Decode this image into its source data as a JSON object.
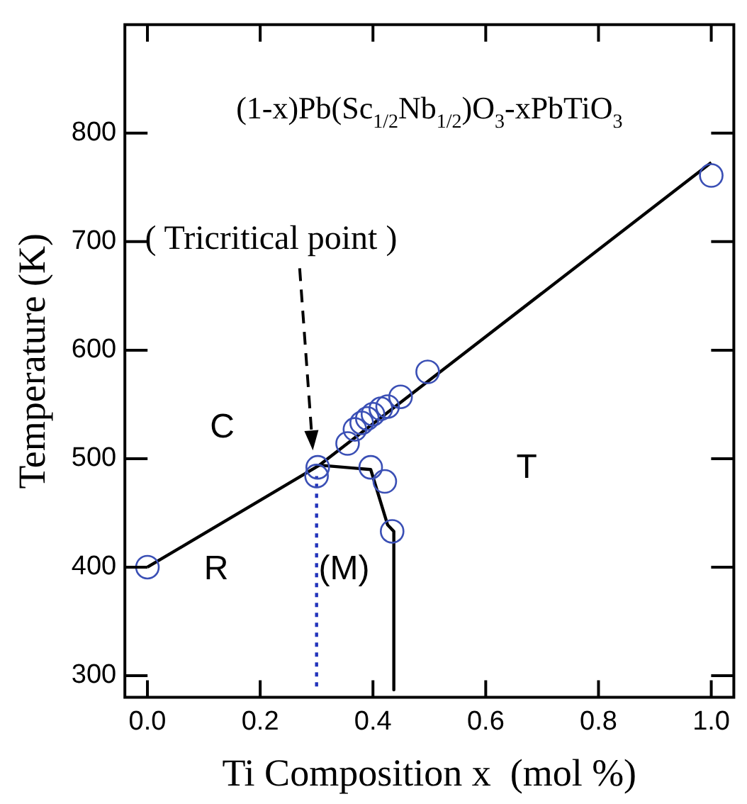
{
  "chart_data": {
    "type": "scatter",
    "title": "(1-x)Pb(Sc$_{1/2}$Nb$_{1/2}$)O$_{3}$-xPbTiO$_{3}$",
    "xlabel": "Ti Composition x  (mol %)",
    "ylabel": "Temperature (K)",
    "xlim": [
      -0.04,
      1.04
    ],
    "xticks": [
      {
        "value": 0,
        "label": "0.0"
      },
      {
        "value": 0.2,
        "label": "0.2"
      },
      {
        "value": 0.4,
        "label": "0.4"
      },
      {
        "value": 0.6,
        "label": "0.6"
      },
      {
        "value": 0.8,
        "label": "0.8"
      },
      {
        "value": 1,
        "label": "1.0"
      }
    ],
    "ylim": [
      280,
      900
    ],
    "yticks": [
      300,
      400,
      500,
      600,
      700,
      800
    ],
    "grid": false,
    "legend": false,
    "series": [
      {
        "type": "scatter",
        "color": "#3a4fb5",
        "marker": "circle",
        "x": [
          0,
          0.3,
          0.302,
          0.355,
          0.368,
          0.38,
          0.39,
          0.4,
          0.414,
          0.426,
          0.449,
          0.497,
          1.0,
          0.396,
          0.421,
          0.434
        ],
        "values": [
          400,
          484,
          492,
          514,
          527,
          533,
          537,
          541,
          546,
          548,
          557,
          580,
          761,
          492,
          479,
          433
        ]
      },
      {
        "type": "line",
        "color": "#000000",
        "marker": "none",
        "line_style": "solid",
        "x": [
          0,
          0.305,
          1.0
        ],
        "values": [
          400,
          494,
          773
        ]
      },
      {
        "type": "line",
        "color": "#000000",
        "marker": "none",
        "line_style": "solid",
        "x": [
          0.305,
          0.396,
          0.426,
          0.437,
          0.437
        ],
        "values": [
          494,
          490,
          439,
          433,
          287
        ]
      },
      {
        "type": "line",
        "color": "#2233bb",
        "marker": "none",
        "line_style": "dotted",
        "x": [
          0.3,
          0.3
        ],
        "values": [
          290,
          484
        ]
      }
    ],
    "annotations": [
      "( Tricritical point )",
      "C",
      "R",
      "(M)",
      "T"
    ]
  }
}
